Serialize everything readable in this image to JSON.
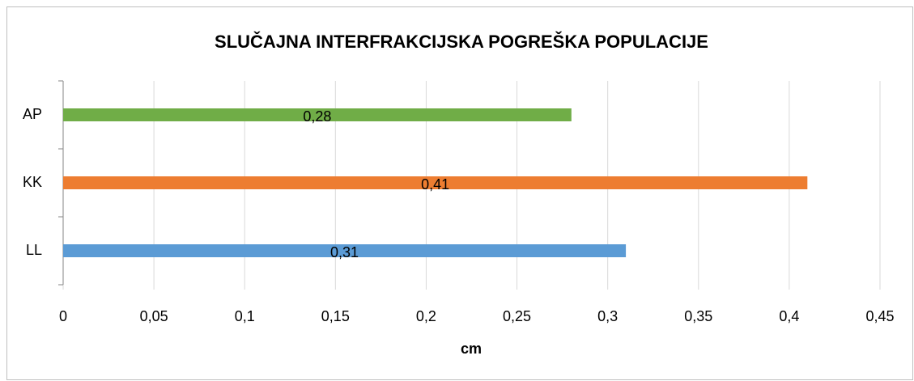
{
  "chart_data": {
    "type": "bar",
    "orientation": "horizontal",
    "title": "SLUČAJNA INTERFRAKCIJSKA POGREŠKA POPULACIJE",
    "xlabel": "cm",
    "categories": [
      "LL",
      "KK",
      "AP"
    ],
    "values": [
      0.31,
      0.41,
      0.28
    ],
    "value_labels": [
      "0,31",
      "0,41",
      "0,28"
    ],
    "colors": [
      "#5b9bd5",
      "#ed7d31",
      "#70ad47"
    ],
    "xlim": [
      0,
      0.45
    ],
    "xticks": [
      0,
      {
        "value": 0.05,
        "label": "0,05"
      },
      {
        "value": 0.1,
        "label": "0,1"
      },
      {
        "value": 0.15,
        "label": "0,15"
      },
      {
        "value": 0.2,
        "label": "0,2"
      },
      {
        "value": 0.25,
        "label": "0,25"
      },
      {
        "value": 0.3,
        "label": "0,3"
      },
      {
        "value": 0.35,
        "label": "0,35"
      },
      {
        "value": 0.4,
        "label": "0,4"
      },
      {
        "value": 0.45,
        "label": "0,45"
      }
    ],
    "grid": true
  }
}
